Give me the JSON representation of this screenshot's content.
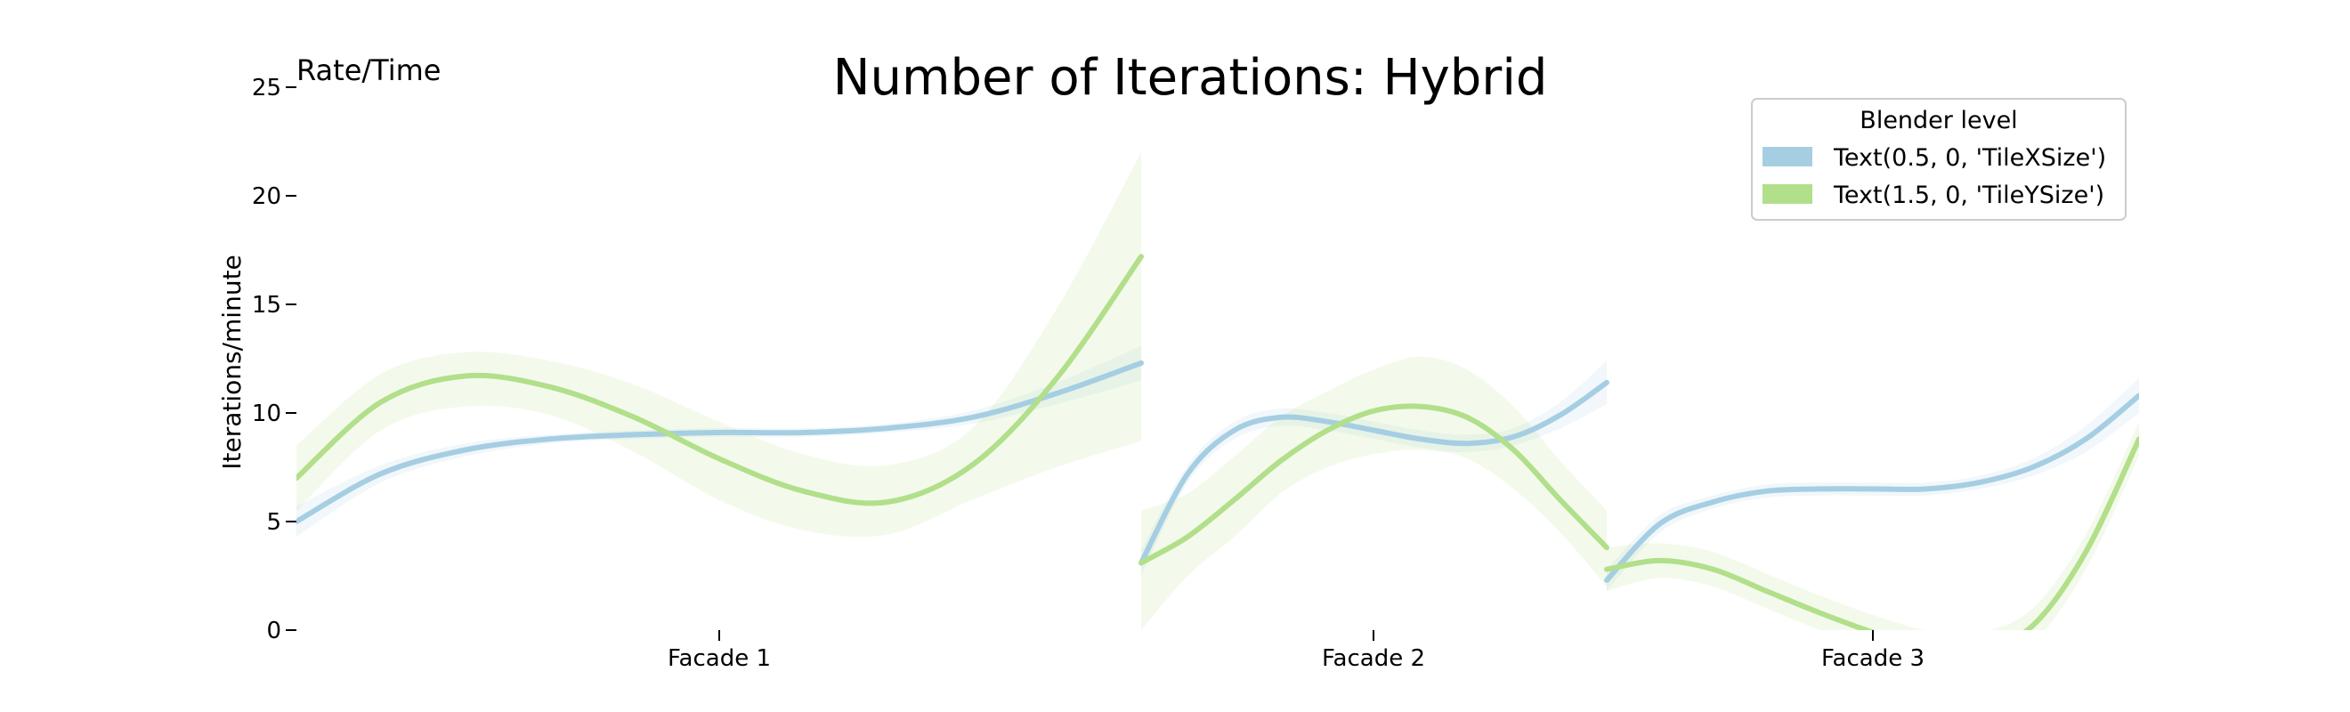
{
  "chart_data": {
    "type": "line",
    "title": "Number of Iterations: Hybrid",
    "corner_label": "Rate/Time",
    "xlabel": "",
    "ylabel": "Iterations/minute",
    "ylim": [
      0,
      25
    ],
    "yticks": [
      0,
      5,
      10,
      15,
      20,
      25
    ],
    "grid": false,
    "legend": {
      "title": "Blender level",
      "placement": "top-right",
      "entries": [
        "Text(0.5, 0, 'TileXSize')",
        "Text(1.5, 0, 'TileYSize')"
      ]
    },
    "colors": {
      "TileXSize": "#a6cee3",
      "TileYSize": "#b2df8a"
    },
    "panels": [
      {
        "category": "Facade 1",
        "x": [
          0,
          0.1,
          0.2,
          0.3,
          0.4,
          0.5,
          0.6,
          0.7,
          0.8,
          0.9,
          1.0
        ],
        "series": [
          {
            "key": "TileXSize",
            "values": [
              5.0,
              7.2,
              8.3,
              8.8,
              9.0,
              9.1,
              9.1,
              9.3,
              9.8,
              10.9,
              12.3
            ],
            "lower": [
              4.3,
              6.8,
              8.0,
              8.6,
              8.8,
              8.9,
              8.9,
              9.1,
              9.5,
              10.4,
              11.5
            ],
            "upper": [
              5.7,
              7.6,
              8.6,
              9.0,
              9.2,
              9.3,
              9.3,
              9.5,
              10.1,
              11.4,
              13.1
            ]
          },
          {
            "key": "TileYSize",
            "values": [
              7.0,
              10.5,
              11.7,
              11.2,
              9.8,
              7.9,
              6.4,
              5.9,
              7.6,
              11.6,
              17.2
            ],
            "lower": [
              5.5,
              9.2,
              10.3,
              9.9,
              8.2,
              6.0,
              4.6,
              4.4,
              6.0,
              7.5,
              8.7
            ],
            "upper": [
              8.5,
              11.8,
              12.8,
              12.4,
              11.3,
              9.6,
              8.1,
              7.6,
              9.3,
              14.8,
              22.0
            ]
          }
        ]
      },
      {
        "category": "Facade 2",
        "x": [
          0,
          0.1,
          0.2,
          0.3,
          0.4,
          0.5,
          0.6,
          0.7,
          0.8,
          0.9,
          1.0
        ],
        "series": [
          {
            "key": "TileXSize",
            "values": [
              3.1,
              7.2,
              9.2,
              9.8,
              9.6,
              9.2,
              8.8,
              8.6,
              8.9,
              9.9,
              11.4
            ],
            "lower": [
              2.5,
              6.8,
              8.8,
              9.4,
              9.2,
              8.8,
              8.4,
              8.2,
              8.5,
              9.3,
              10.4
            ],
            "upper": [
              3.7,
              7.6,
              9.6,
              10.2,
              10.0,
              9.6,
              9.2,
              9.0,
              9.3,
              10.5,
              12.4
            ]
          },
          {
            "key": "TileYSize",
            "values": [
              3.1,
              4.3,
              6.0,
              7.8,
              9.2,
              10.1,
              10.3,
              9.8,
              8.3,
              6.0,
              3.8
            ],
            "lower": [
              0,
              2.5,
              4.3,
              6.3,
              7.5,
              8.1,
              8.3,
              7.9,
              6.5,
              4.5,
              2.0
            ],
            "upper": [
              5.5,
              6.3,
              8.0,
              9.8,
              11.0,
              12.0,
              12.6,
              12.0,
              10.3,
              7.8,
              5.5
            ]
          }
        ]
      },
      {
        "category": "Facade 3",
        "x": [
          0,
          0.1,
          0.2,
          0.3,
          0.4,
          0.5,
          0.6,
          0.7,
          0.8,
          0.9,
          1.0
        ],
        "series": [
          {
            "key": "TileXSize",
            "values": [
              2.3,
              4.9,
              5.9,
              6.4,
              6.5,
              6.5,
              6.5,
              6.8,
              7.5,
              8.8,
              10.8
            ],
            "lower": [
              1.8,
              4.5,
              5.6,
              6.1,
              6.2,
              6.2,
              6.2,
              6.5,
              7.1,
              8.2,
              10.0
            ],
            "upper": [
              2.8,
              5.3,
              6.2,
              6.7,
              6.8,
              6.8,
              6.8,
              7.1,
              7.9,
              9.4,
              11.6
            ],
            "fill_note": ""
          },
          {
            "key": "TileYSize",
            "values": [
              2.8,
              3.2,
              2.8,
              1.8,
              0.8,
              -0.1,
              -0.8,
              -0.9,
              0.2,
              3.6,
              8.8
            ],
            "lower": [
              1.8,
              2.4,
              2.0,
              1.0,
              0.0,
              -0.9,
              -1.6,
              -1.7,
              -0.6,
              2.8,
              8.0
            ],
            "upper": [
              3.8,
              4.0,
              3.6,
              2.6,
              1.6,
              0.7,
              0.0,
              -0.1,
              1.0,
              4.4,
              9.6
            ]
          }
        ]
      }
    ]
  }
}
